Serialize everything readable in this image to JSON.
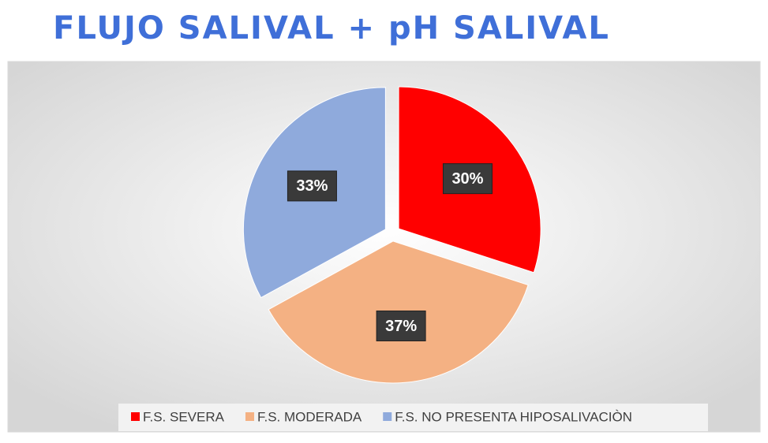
{
  "chart_data": {
    "type": "pie",
    "title": "FLUJO SALIVAL + pH SALIVAL",
    "categories": [
      "F.S. SEVERA",
      "F.S. MODERADA",
      "F.S. NO PRESENTA HIPOSALIVACIÒN"
    ],
    "values": [
      30,
      37,
      33
    ],
    "value_labels": [
      "30%",
      "37%",
      "33%"
    ],
    "colors": [
      "#ff0000",
      "#f4b183",
      "#8faadc"
    ],
    "legend": "bottom"
  }
}
